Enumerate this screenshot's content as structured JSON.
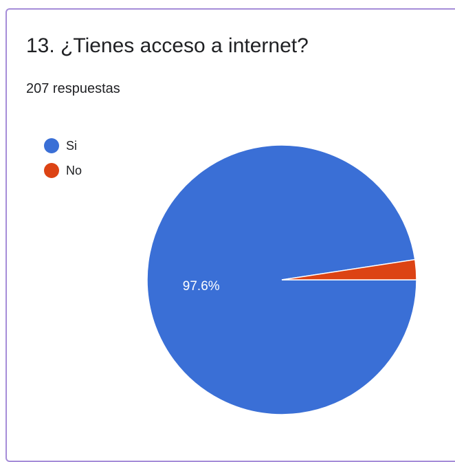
{
  "card": {
    "title": "13. ¿Tienes acceso a internet?",
    "subtitle": "207 respuestas"
  },
  "colors": {
    "border": "#a58cd8",
    "slice_si": "#3a6fd6",
    "slice_no": "#dc4314",
    "text": "#202124",
    "label_on_slice": "#ffffff"
  },
  "chart_data": {
    "type": "pie",
    "categories": [
      "Si",
      "No"
    ],
    "values": [
      97.6,
      2.4
    ],
    "data_labels": [
      "97.6%",
      ""
    ],
    "legend_position": "top-left"
  }
}
